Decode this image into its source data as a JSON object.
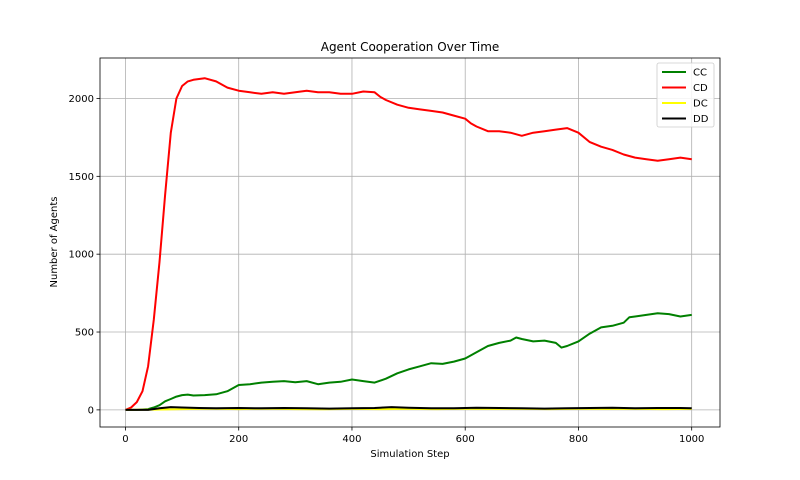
{
  "chart_data": {
    "type": "line",
    "title": "Agent Cooperation Over Time",
    "xlabel": "Simulation Step",
    "ylabel": "Number of Agents",
    "xlim": [
      -45,
      1050
    ],
    "ylim": [
      -110,
      2260
    ],
    "xticks": [
      0,
      200,
      400,
      600,
      800,
      1000
    ],
    "yticks": [
      0,
      500,
      1000,
      1500,
      2000
    ],
    "grid": true,
    "legend_position": "top-right",
    "series": [
      {
        "name": "CC",
        "color": "#008000",
        "points": [
          [
            0,
            0
          ],
          [
            20,
            0
          ],
          [
            40,
            5
          ],
          [
            50,
            15
          ],
          [
            60,
            30
          ],
          [
            70,
            55
          ],
          [
            80,
            70
          ],
          [
            90,
            85
          ],
          [
            100,
            95
          ],
          [
            110,
            98
          ],
          [
            120,
            92
          ],
          [
            140,
            95
          ],
          [
            160,
            100
          ],
          [
            180,
            120
          ],
          [
            200,
            160
          ],
          [
            220,
            165
          ],
          [
            240,
            175
          ],
          [
            260,
            180
          ],
          [
            280,
            185
          ],
          [
            300,
            178
          ],
          [
            320,
            185
          ],
          [
            340,
            165
          ],
          [
            360,
            175
          ],
          [
            380,
            180
          ],
          [
            400,
            195
          ],
          [
            420,
            185
          ],
          [
            440,
            175
          ],
          [
            460,
            200
          ],
          [
            480,
            235
          ],
          [
            500,
            260
          ],
          [
            520,
            280
          ],
          [
            540,
            300
          ],
          [
            560,
            295
          ],
          [
            580,
            310
          ],
          [
            600,
            330
          ],
          [
            620,
            370
          ],
          [
            640,
            410
          ],
          [
            660,
            430
          ],
          [
            680,
            445
          ],
          [
            690,
            465
          ],
          [
            700,
            455
          ],
          [
            720,
            440
          ],
          [
            740,
            445
          ],
          [
            760,
            430
          ],
          [
            770,
            400
          ],
          [
            780,
            410
          ],
          [
            800,
            440
          ],
          [
            820,
            490
          ],
          [
            840,
            530
          ],
          [
            860,
            540
          ],
          [
            880,
            560
          ],
          [
            890,
            595
          ],
          [
            900,
            600
          ],
          [
            920,
            610
          ],
          [
            940,
            620
          ],
          [
            960,
            615
          ],
          [
            980,
            600
          ],
          [
            1000,
            610
          ]
        ]
      },
      {
        "name": "CD",
        "color": "#ff0000",
        "points": [
          [
            0,
            0
          ],
          [
            10,
            15
          ],
          [
            20,
            50
          ],
          [
            30,
            120
          ],
          [
            40,
            280
          ],
          [
            50,
            580
          ],
          [
            60,
            950
          ],
          [
            70,
            1380
          ],
          [
            80,
            1780
          ],
          [
            90,
            2000
          ],
          [
            100,
            2080
          ],
          [
            110,
            2110
          ],
          [
            120,
            2120
          ],
          [
            140,
            2130
          ],
          [
            160,
            2110
          ],
          [
            180,
            2070
          ],
          [
            200,
            2050
          ],
          [
            220,
            2040
          ],
          [
            240,
            2030
          ],
          [
            260,
            2040
          ],
          [
            280,
            2030
          ],
          [
            300,
            2040
          ],
          [
            320,
            2050
          ],
          [
            340,
            2040
          ],
          [
            360,
            2040
          ],
          [
            380,
            2030
          ],
          [
            400,
            2030
          ],
          [
            420,
            2045
          ],
          [
            440,
            2040
          ],
          [
            450,
            2010
          ],
          [
            460,
            1990
          ],
          [
            480,
            1960
          ],
          [
            500,
            1940
          ],
          [
            520,
            1930
          ],
          [
            540,
            1920
          ],
          [
            560,
            1910
          ],
          [
            580,
            1890
          ],
          [
            600,
            1870
          ],
          [
            610,
            1840
          ],
          [
            620,
            1820
          ],
          [
            640,
            1790
          ],
          [
            660,
            1790
          ],
          [
            680,
            1780
          ],
          [
            700,
            1760
          ],
          [
            720,
            1780
          ],
          [
            740,
            1790
          ],
          [
            760,
            1800
          ],
          [
            780,
            1810
          ],
          [
            800,
            1780
          ],
          [
            820,
            1720
          ],
          [
            840,
            1690
          ],
          [
            860,
            1670
          ],
          [
            880,
            1640
          ],
          [
            900,
            1620
          ],
          [
            920,
            1610
          ],
          [
            940,
            1600
          ],
          [
            960,
            1610
          ],
          [
            980,
            1620
          ],
          [
            1000,
            1610
          ]
        ]
      },
      {
        "name": "DC",
        "color": "#ffff00",
        "points": [
          [
            0,
            0
          ],
          [
            50,
            2
          ],
          [
            100,
            5
          ],
          [
            150,
            8
          ],
          [
            200,
            5
          ],
          [
            250,
            8
          ],
          [
            300,
            5
          ],
          [
            350,
            4
          ],
          [
            400,
            6
          ],
          [
            450,
            5
          ],
          [
            500,
            6
          ],
          [
            550,
            5
          ],
          [
            600,
            7
          ],
          [
            650,
            6
          ],
          [
            700,
            6
          ],
          [
            750,
            5
          ],
          [
            800,
            7
          ],
          [
            850,
            6
          ],
          [
            900,
            6
          ],
          [
            950,
            5
          ],
          [
            1000,
            6
          ]
        ]
      },
      {
        "name": "DD",
        "color": "#000000",
        "points": [
          [
            0,
            0
          ],
          [
            40,
            0
          ],
          [
            60,
            10
          ],
          [
            80,
            18
          ],
          [
            100,
            15
          ],
          [
            130,
            12
          ],
          [
            160,
            10
          ],
          [
            200,
            12
          ],
          [
            240,
            10
          ],
          [
            280,
            12
          ],
          [
            320,
            10
          ],
          [
            360,
            8
          ],
          [
            400,
            10
          ],
          [
            440,
            12
          ],
          [
            470,
            18
          ],
          [
            500,
            14
          ],
          [
            540,
            10
          ],
          [
            580,
            10
          ],
          [
            620,
            14
          ],
          [
            660,
            12
          ],
          [
            700,
            10
          ],
          [
            740,
            8
          ],
          [
            780,
            10
          ],
          [
            820,
            12
          ],
          [
            860,
            14
          ],
          [
            900,
            10
          ],
          [
            940,
            12
          ],
          [
            980,
            12
          ],
          [
            1000,
            10
          ]
        ]
      }
    ]
  }
}
